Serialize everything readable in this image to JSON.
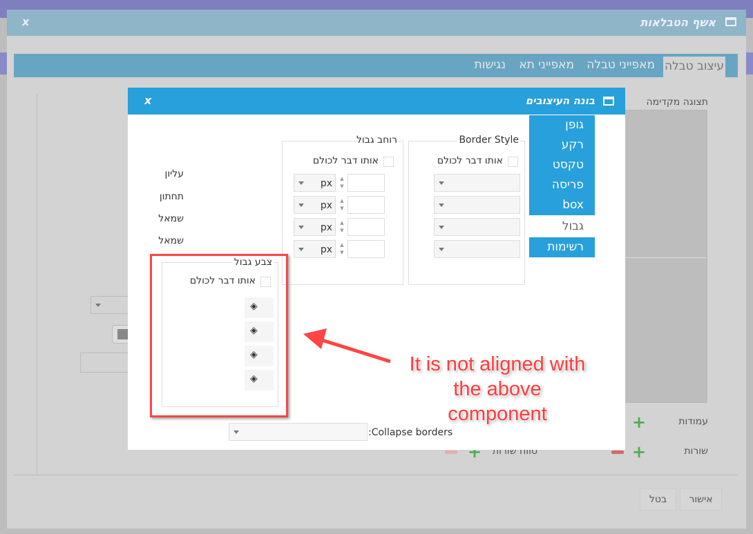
{
  "outer_dialog": {
    "title": "אשף הטבלאות",
    "close": "x",
    "tabs": [
      {
        "label": "עיצוב טבלה",
        "active": true
      },
      {
        "label": "מאפייני טבלה",
        "active": false
      },
      {
        "label": "מאפייני תא",
        "active": false
      },
      {
        "label": "נגישות",
        "active": false
      }
    ],
    "preview_label": "תצוגה מקדימה",
    "columns_label": "עמודות",
    "rows_label": "שורות",
    "row_range_label": "טווח שורות",
    "ok_button": "אישור",
    "cancel_button": "בטל"
  },
  "inner_dialog": {
    "title": "בונה העיצובים",
    "close": "x",
    "side_menu": [
      {
        "label": "גופן",
        "active": false
      },
      {
        "label": "רקע",
        "active": false
      },
      {
        "label": "טקסט",
        "active": false
      },
      {
        "label": "פריסה",
        "active": false
      },
      {
        "label": "box",
        "active": false
      },
      {
        "label": "גבול",
        "active": true
      },
      {
        "label": "רשימות",
        "active": false
      }
    ],
    "side_labels": [
      "עליון",
      "תחתון",
      "שמאל",
      "שמאל"
    ],
    "border_style": {
      "legend": "Border Style",
      "same_for_all": "אותו דבר לכולם"
    },
    "border_width": {
      "legend": "רוחב גבול",
      "same_for_all": "אותו דבר לכולם",
      "unit": "px"
    },
    "border_color": {
      "legend": "צבע גבול",
      "same_for_all": "אותו דבר לכולם"
    },
    "collapse_borders_label": ":Collapse borders"
  },
  "annotation": {
    "text": "It is not aligned with the above component",
    "color": "#ff3b3b"
  },
  "colors": {
    "title_blue": "#27a0db",
    "tab_bar": "#68a5c2"
  }
}
